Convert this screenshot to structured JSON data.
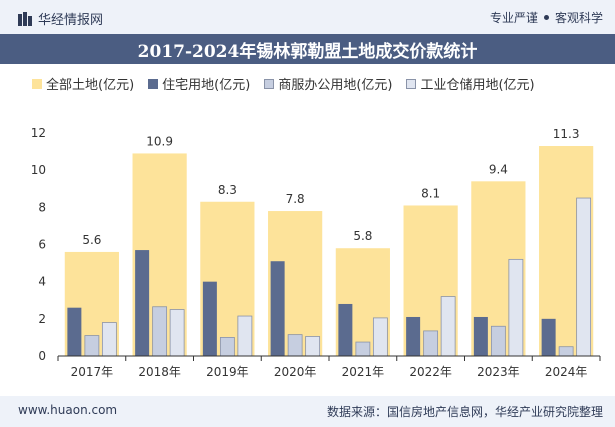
{
  "header": {
    "brand": "华经情报网",
    "tagline_left": "专业严谨",
    "tagline_right": "客观科学"
  },
  "footer": {
    "site": "www.huaon.com",
    "source": "数据来源：国信房地产信息网，华经产业研究院整理"
  },
  "colors": {
    "total": "#fde39a",
    "residential": "#5b6b8f",
    "commercial": "#c6cee0",
    "industrial": "#e0e5f0",
    "axis": "#333333",
    "title_bg": "#4b5d82"
  },
  "chart_data": {
    "type": "bar",
    "title": "2017-2024年锡林郭勒盟土地成交价款统计",
    "categories": [
      "2017年",
      "2018年",
      "2019年",
      "2020年",
      "2021年",
      "2022年",
      "2023年",
      "2024年"
    ],
    "series": [
      {
        "name": "全部土地(亿元)",
        "values": [
          5.6,
          10.9,
          8.3,
          7.8,
          5.8,
          8.1,
          9.4,
          11.3
        ]
      },
      {
        "name": "住宅用地(亿元)",
        "values": [
          2.6,
          5.7,
          4.0,
          5.1,
          2.8,
          2.1,
          2.1,
          2.0
        ]
      },
      {
        "name": "商服办公用地(亿元)",
        "values": [
          1.1,
          2.65,
          1.0,
          1.15,
          0.75,
          1.35,
          1.6,
          0.5
        ]
      },
      {
        "name": "工业仓储用地(亿元)",
        "values": [
          1.8,
          2.5,
          2.15,
          1.05,
          2.05,
          3.2,
          5.2,
          8.5
        ]
      }
    ],
    "data_labels": [
      "5.6",
      "10.9",
      "8.3",
      "7.8",
      "5.8",
      "8.1",
      "9.4",
      "11.3"
    ],
    "yticks": [
      "0",
      "2",
      "4",
      "6",
      "8",
      "10",
      "12"
    ],
    "ylim": [
      0,
      12
    ],
    "grid": false,
    "legend": "top"
  }
}
